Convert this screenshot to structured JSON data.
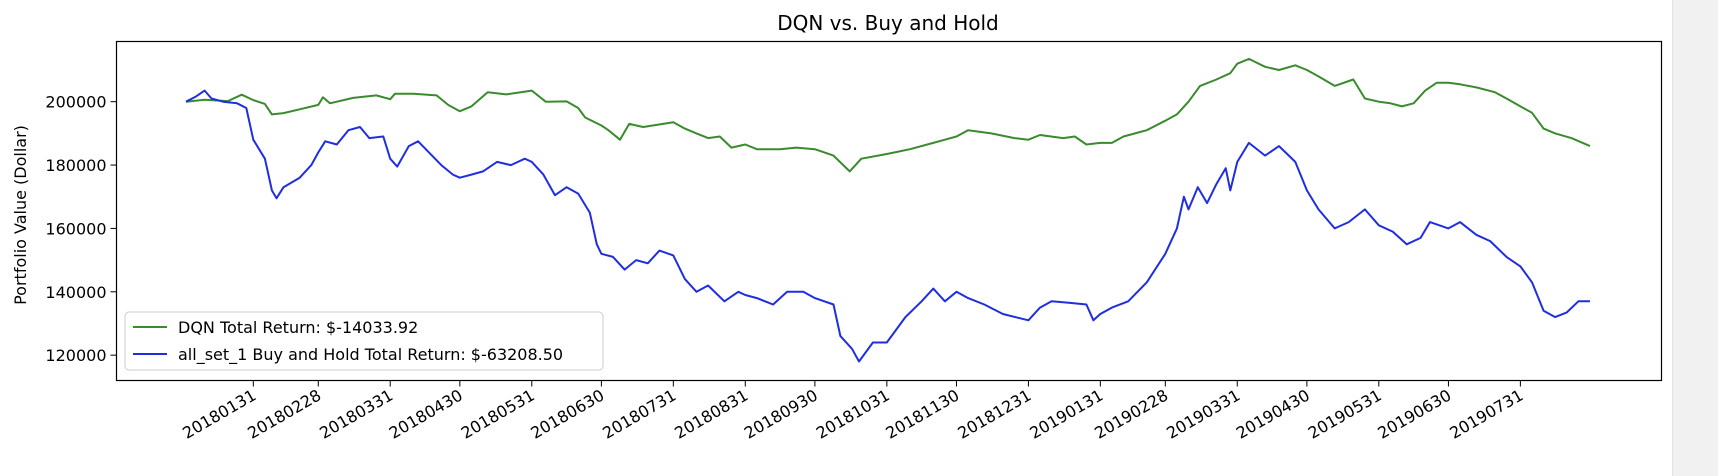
{
  "chart_data": {
    "type": "line",
    "title": "DQN vs. Buy and Hold",
    "xlabel": "",
    "ylabel": "Portfolio Value (Dollar)",
    "x_range": [
      "20180102",
      "20190830"
    ],
    "ylim": [
      112000,
      219000
    ],
    "y_ticks": [
      120000,
      140000,
      160000,
      180000,
      200000
    ],
    "x_ticks": [
      "20180131",
      "20180228",
      "20180331",
      "20180430",
      "20180531",
      "20180630",
      "20180731",
      "20180831",
      "20180930",
      "20181031",
      "20181130",
      "20181231",
      "20190131",
      "20190228",
      "20190331",
      "20190430",
      "20190531",
      "20190630",
      "20190731"
    ],
    "grid": false,
    "legend_position": "lower-left",
    "series": [
      {
        "name": "DQN Total Return: $-14033.92",
        "color": "#3a8a2e",
        "points": [
          [
            "20180102",
            200000
          ],
          [
            "20180110",
            200600
          ],
          [
            "20180120",
            200200
          ],
          [
            "20180126",
            202200
          ],
          [
            "20180131",
            200500
          ],
          [
            "20180205",
            199300
          ],
          [
            "20180208",
            196000
          ],
          [
            "20180213",
            196400
          ],
          [
            "20180220",
            197600
          ],
          [
            "20180228",
            199000
          ],
          [
            "20180302",
            201400
          ],
          [
            "20180305",
            199500
          ],
          [
            "20180315",
            201200
          ],
          [
            "20180325",
            202000
          ],
          [
            "20180331",
            200800
          ],
          [
            "20180402",
            202500
          ],
          [
            "20180410",
            202500
          ],
          [
            "20180420",
            202000
          ],
          [
            "20180425",
            199000
          ],
          [
            "20180430",
            197000
          ],
          [
            "20180505",
            198500
          ],
          [
            "20180512",
            203000
          ],
          [
            "20180520",
            202300
          ],
          [
            "20180531",
            203500
          ],
          [
            "20180606",
            200000
          ],
          [
            "20180615",
            200100
          ],
          [
            "20180620",
            198000
          ],
          [
            "20180623",
            195000
          ],
          [
            "20180630",
            192500
          ],
          [
            "20180703",
            191000
          ],
          [
            "20180708",
            188000
          ],
          [
            "20180712",
            193000
          ],
          [
            "20180718",
            192000
          ],
          [
            "20180731",
            193500
          ],
          [
            "20180805",
            191500
          ],
          [
            "20180810",
            190000
          ],
          [
            "20180815",
            188500
          ],
          [
            "20180820",
            189000
          ],
          [
            "20180825",
            185500
          ],
          [
            "20180831",
            186500
          ],
          [
            "20180905",
            185000
          ],
          [
            "20180915",
            185000
          ],
          [
            "20180922",
            185500
          ],
          [
            "20180930",
            185000
          ],
          [
            "20181008",
            183000
          ],
          [
            "20181015",
            178000
          ],
          [
            "20181020",
            182000
          ],
          [
            "20181031",
            183500
          ],
          [
            "20181110",
            185000
          ],
          [
            "20181120",
            187000
          ],
          [
            "20181125",
            188000
          ],
          [
            "20181130",
            189000
          ],
          [
            "20181205",
            191000
          ],
          [
            "20181215",
            190000
          ],
          [
            "20181225",
            188500
          ],
          [
            "20181231",
            188000
          ],
          [
            "20190105",
            189500
          ],
          [
            "20190115",
            188500
          ],
          [
            "20190120",
            189000
          ],
          [
            "20190125",
            186500
          ],
          [
            "20190131",
            187000
          ],
          [
            "20190205",
            187000
          ],
          [
            "20190210",
            189000
          ],
          [
            "20190220",
            191000
          ],
          [
            "20190228",
            194000
          ],
          [
            "20190305",
            196000
          ],
          [
            "20190310",
            200000
          ],
          [
            "20190315",
            205000
          ],
          [
            "20190322",
            207000
          ],
          [
            "20190328",
            209000
          ],
          [
            "20190331",
            212000
          ],
          [
            "20190405",
            213500
          ],
          [
            "20190412",
            211000
          ],
          [
            "20190418",
            210000
          ],
          [
            "20190425",
            211500
          ],
          [
            "20190430",
            210000
          ],
          [
            "20190505",
            208000
          ],
          [
            "20190512",
            205000
          ],
          [
            "20190520",
            207000
          ],
          [
            "20190525",
            201000
          ],
          [
            "20190531",
            200000
          ],
          [
            "20190605",
            199500
          ],
          [
            "20190610",
            198500
          ],
          [
            "20190615",
            199500
          ],
          [
            "20190620",
            203500
          ],
          [
            "20190625",
            206000
          ],
          [
            "20190630",
            206000
          ],
          [
            "20190705",
            205500
          ],
          [
            "20190712",
            204500
          ],
          [
            "20190720",
            203000
          ],
          [
            "20190725",
            201000
          ],
          [
            "20190731",
            198500
          ],
          [
            "20190805",
            196500
          ],
          [
            "20190810",
            191500
          ],
          [
            "20190815",
            190000
          ],
          [
            "20190822",
            188500
          ],
          [
            "20190830",
            186000
          ]
        ]
      },
      {
        "name": "all_set_1 Buy and Hold Total Return: $-63208.50",
        "color": "#1f2ee0",
        "points": [
          [
            "20180102",
            200000
          ],
          [
            "20180106",
            201500
          ],
          [
            "20180110",
            203500
          ],
          [
            "20180113",
            201000
          ],
          [
            "20180118",
            200000
          ],
          [
            "20180124",
            199500
          ],
          [
            "20180128",
            198000
          ],
          [
            "20180131",
            188000
          ],
          [
            "20180205",
            182000
          ],
          [
            "20180208",
            172000
          ],
          [
            "20180210",
            169500
          ],
          [
            "20180213",
            173000
          ],
          [
            "20180220",
            176000
          ],
          [
            "20180225",
            180000
          ],
          [
            "20180228",
            184000
          ],
          [
            "20180303",
            187500
          ],
          [
            "20180308",
            186500
          ],
          [
            "20180313",
            191000
          ],
          [
            "20180318",
            192000
          ],
          [
            "20180322",
            188500
          ],
          [
            "20180328",
            189000
          ],
          [
            "20180331",
            182000
          ],
          [
            "20180403",
            179500
          ],
          [
            "20180408",
            186000
          ],
          [
            "20180412",
            187500
          ],
          [
            "20180418",
            183000
          ],
          [
            "20180422",
            180000
          ],
          [
            "20180427",
            177000
          ],
          [
            "20180430",
            176000
          ],
          [
            "20180505",
            177000
          ],
          [
            "20180510",
            178000
          ],
          [
            "20180516",
            181000
          ],
          [
            "20180522",
            180000
          ],
          [
            "20180528",
            182000
          ],
          [
            "20180531",
            181000
          ],
          [
            "20180605",
            177000
          ],
          [
            "20180610",
            170500
          ],
          [
            "20180615",
            173000
          ],
          [
            "20180620",
            171000
          ],
          [
            "20180625",
            165000
          ],
          [
            "20180628",
            155000
          ],
          [
            "20180630",
            152000
          ],
          [
            "20180705",
            151000
          ],
          [
            "20180710",
            147000
          ],
          [
            "20180715",
            150000
          ],
          [
            "20180720",
            149000
          ],
          [
            "20180725",
            153000
          ],
          [
            "20180731",
            151500
          ],
          [
            "20180805",
            144000
          ],
          [
            "20180810",
            140000
          ],
          [
            "20180815",
            142000
          ],
          [
            "20180822",
            137000
          ],
          [
            "20180828",
            140000
          ],
          [
            "20180831",
            139000
          ],
          [
            "20180905",
            138000
          ],
          [
            "20180912",
            136000
          ],
          [
            "20180918",
            140000
          ],
          [
            "20180925",
            140000
          ],
          [
            "20180930",
            138000
          ],
          [
            "20181008",
            136000
          ],
          [
            "20181011",
            126000
          ],
          [
            "20181016",
            122000
          ],
          [
            "20181019",
            118000
          ],
          [
            "20181025",
            124000
          ],
          [
            "20181031",
            124000
          ],
          [
            "20181108",
            132000
          ],
          [
            "20181115",
            137000
          ],
          [
            "20181120",
            141000
          ],
          [
            "20181125",
            137000
          ],
          [
            "20181130",
            140000
          ],
          [
            "20181205",
            138000
          ],
          [
            "20181212",
            136000
          ],
          [
            "20181220",
            133000
          ],
          [
            "20181231",
            131000
          ],
          [
            "20190105",
            135000
          ],
          [
            "20190110",
            137000
          ],
          [
            "20190118",
            136500
          ],
          [
            "20190125",
            136000
          ],
          [
            "20190128",
            131000
          ],
          [
            "20190131",
            133000
          ],
          [
            "20190205",
            135000
          ],
          [
            "20190212",
            137000
          ],
          [
            "20190220",
            143000
          ],
          [
            "20190228",
            152000
          ],
          [
            "20190305",
            160000
          ],
          [
            "20190308",
            170000
          ],
          [
            "20190310",
            166000
          ],
          [
            "20190314",
            173000
          ],
          [
            "20190318",
            168000
          ],
          [
            "20190322",
            174000
          ],
          [
            "20190326",
            179000
          ],
          [
            "20190328",
            172000
          ],
          [
            "20190331",
            181000
          ],
          [
            "20190405",
            187000
          ],
          [
            "20190412",
            183000
          ],
          [
            "20190418",
            186000
          ],
          [
            "20190425",
            181000
          ],
          [
            "20190430",
            172000
          ],
          [
            "20190505",
            166000
          ],
          [
            "20190512",
            160000
          ],
          [
            "20190518",
            162000
          ],
          [
            "20190525",
            166000
          ],
          [
            "20190531",
            161000
          ],
          [
            "20190606",
            159000
          ],
          [
            "20190612",
            155000
          ],
          [
            "20190618",
            157000
          ],
          [
            "20190622",
            162000
          ],
          [
            "20190630",
            160000
          ],
          [
            "20190705",
            162000
          ],
          [
            "20190712",
            158000
          ],
          [
            "20190718",
            156000
          ],
          [
            "20190725",
            151000
          ],
          [
            "20190731",
            148000
          ],
          [
            "20190805",
            143000
          ],
          [
            "20190810",
            134000
          ],
          [
            "20190815",
            132000
          ],
          [
            "20190820",
            133500
          ],
          [
            "20190825",
            137000
          ],
          [
            "20190830",
            137000
          ]
        ]
      }
    ]
  }
}
